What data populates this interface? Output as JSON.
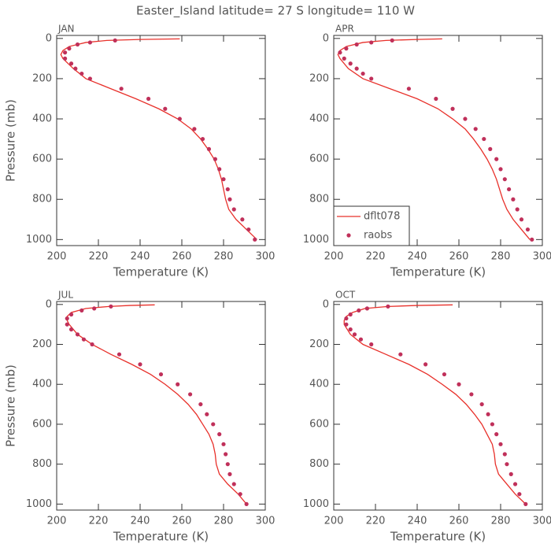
{
  "title": "Easter_Island  latitude= 27 S longitude= 110 W",
  "chart_data": [
    {
      "type": "line",
      "title": "JAN",
      "xlabel": "Temperature (K)",
      "ylabel": "Pressure (mb)",
      "xlim": [
        200,
        300
      ],
      "xticks": [
        200,
        220,
        240,
        260,
        280,
        300
      ],
      "ylim": [
        1030,
        -15
      ],
      "yticks": [
        0,
        200,
        400,
        600,
        800,
        1000
      ],
      "series": [
        {
          "style": "line",
          "color": "#e8302a",
          "x": [
            296,
            291,
            286,
            282.5,
            281,
            280,
            279,
            277.5,
            275.5,
            272.5,
            269,
            264.5,
            258,
            249,
            238,
            226,
            214,
            208,
            203,
            202,
            203,
            206,
            214,
            224,
            240,
            259
          ],
          "values": [
            1000,
            950,
            900,
            850,
            800,
            750,
            700,
            650,
            600,
            550,
            500,
            450,
            400,
            350,
            300,
            250,
            200,
            150,
            100,
            80,
            60,
            40,
            20,
            10,
            5,
            2
          ]
        },
        {
          "style": "scatter",
          "color": "#c0305a",
          "x": [
            295,
            292,
            289,
            285,
            283,
            282,
            280,
            278,
            276,
            273,
            270,
            266,
            259,
            252,
            244,
            231,
            216,
            212,
            209,
            207,
            204,
            204,
            206,
            210,
            216,
            228
          ],
          "values": [
            1000,
            950,
            900,
            850,
            800,
            750,
            700,
            650,
            600,
            550,
            500,
            450,
            400,
            350,
            300,
            250,
            200,
            175,
            150,
            125,
            100,
            70,
            50,
            30,
            20,
            10
          ]
        }
      ]
    },
    {
      "type": "line",
      "title": "APR",
      "xlabel": "Temperature (K)",
      "legend": "lower left",
      "xlim": [
        200,
        300
      ],
      "xticks": [
        200,
        220,
        240,
        260,
        280,
        300
      ],
      "ylim": [
        1030,
        -15
      ],
      "yticks": [
        0,
        200,
        400,
        600,
        800,
        1000
      ],
      "series": [
        {
          "name": "dflt078",
          "style": "line",
          "color": "#e8302a",
          "x": [
            294,
            290,
            286,
            283,
            281,
            279.5,
            278,
            276,
            273.5,
            270.5,
            267,
            263,
            257,
            250,
            240,
            227,
            214,
            207,
            203,
            202,
            203,
            206,
            214,
            225,
            240,
            252
          ],
          "values": [
            1000,
            950,
            900,
            850,
            800,
            750,
            700,
            650,
            600,
            550,
            500,
            450,
            400,
            350,
            300,
            250,
            200,
            150,
            100,
            80,
            60,
            40,
            20,
            10,
            5,
            2
          ]
        },
        {
          "name": "raobs",
          "style": "scatter",
          "color": "#c0305a",
          "x": [
            295,
            293,
            290,
            288,
            286,
            284,
            282,
            280,
            278,
            275,
            272,
            268,
            263,
            257,
            249,
            236,
            218,
            214,
            211,
            208,
            205,
            203,
            206,
            211,
            218,
            228
          ],
          "values": [
            1000,
            950,
            900,
            850,
            800,
            750,
            700,
            650,
            600,
            550,
            500,
            450,
            400,
            350,
            300,
            250,
            200,
            175,
            150,
            125,
            100,
            70,
            50,
            30,
            20,
            10
          ]
        }
      ]
    },
    {
      "type": "line",
      "title": "JUL",
      "xlabel": "Temperature (K)",
      "ylabel": "Pressure (mb)",
      "xlim": [
        200,
        300
      ],
      "xticks": [
        200,
        220,
        240,
        260,
        280,
        300
      ],
      "ylim": [
        1030,
        -15
      ],
      "yticks": [
        0,
        200,
        400,
        600,
        800,
        1000
      ],
      "series": [
        {
          "style": "line",
          "color": "#e8302a",
          "x": [
            291,
            287,
            282,
            278,
            276.5,
            276,
            275,
            273,
            270,
            267,
            263,
            258,
            252,
            245,
            236,
            226,
            217,
            210,
            206,
            205,
            205,
            207,
            214,
            225,
            235,
            247
          ],
          "values": [
            1000,
            950,
            900,
            850,
            800,
            750,
            700,
            650,
            600,
            550,
            500,
            450,
            400,
            350,
            300,
            250,
            200,
            150,
            100,
            80,
            60,
            40,
            20,
            10,
            5,
            2
          ]
        },
        {
          "style": "scatter",
          "color": "#c0305a",
          "x": [
            291,
            288,
            285,
            283,
            282,
            281,
            280,
            278,
            275,
            272,
            269,
            264,
            258,
            250,
            240,
            230,
            217,
            213,
            210,
            207,
            205,
            205,
            207,
            212,
            218,
            226
          ],
          "values": [
            1000,
            950,
            900,
            850,
            800,
            750,
            700,
            650,
            600,
            550,
            500,
            450,
            400,
            350,
            300,
            250,
            200,
            175,
            150,
            125,
            100,
            70,
            50,
            30,
            20,
            10
          ]
        }
      ]
    },
    {
      "type": "line",
      "title": "OCT",
      "xlabel": "Temperature (K)",
      "xlim": [
        200,
        300
      ],
      "xticks": [
        200,
        220,
        240,
        260,
        280,
        300
      ],
      "ylim": [
        1030,
        -15
      ],
      "yticks": [
        0,
        200,
        400,
        600,
        800,
        1000
      ],
      "series": [
        {
          "style": "line",
          "color": "#e8302a",
          "x": [
            292,
            287,
            283,
            279,
            277.5,
            277,
            276,
            273.5,
            271,
            267.5,
            263.5,
            258.5,
            252,
            245,
            236,
            225,
            214,
            208,
            205,
            205,
            206,
            209,
            215,
            226,
            240,
            257
          ],
          "values": [
            1000,
            950,
            900,
            850,
            800,
            750,
            700,
            650,
            600,
            550,
            500,
            450,
            400,
            350,
            300,
            250,
            200,
            150,
            100,
            80,
            60,
            40,
            20,
            10,
            5,
            2
          ]
        },
        {
          "style": "scatter",
          "color": "#c0305a",
          "x": [
            292,
            289,
            287,
            285,
            283,
            282,
            280,
            278,
            276,
            274,
            271,
            266,
            260,
            253,
            244,
            232,
            218,
            213,
            210,
            208,
            206,
            206,
            208,
            212,
            216,
            226
          ],
          "values": [
            1000,
            950,
            900,
            850,
            800,
            750,
            700,
            650,
            600,
            550,
            500,
            450,
            400,
            350,
            300,
            250,
            200,
            175,
            150,
            125,
            100,
            70,
            50,
            30,
            20,
            10
          ]
        }
      ]
    }
  ]
}
